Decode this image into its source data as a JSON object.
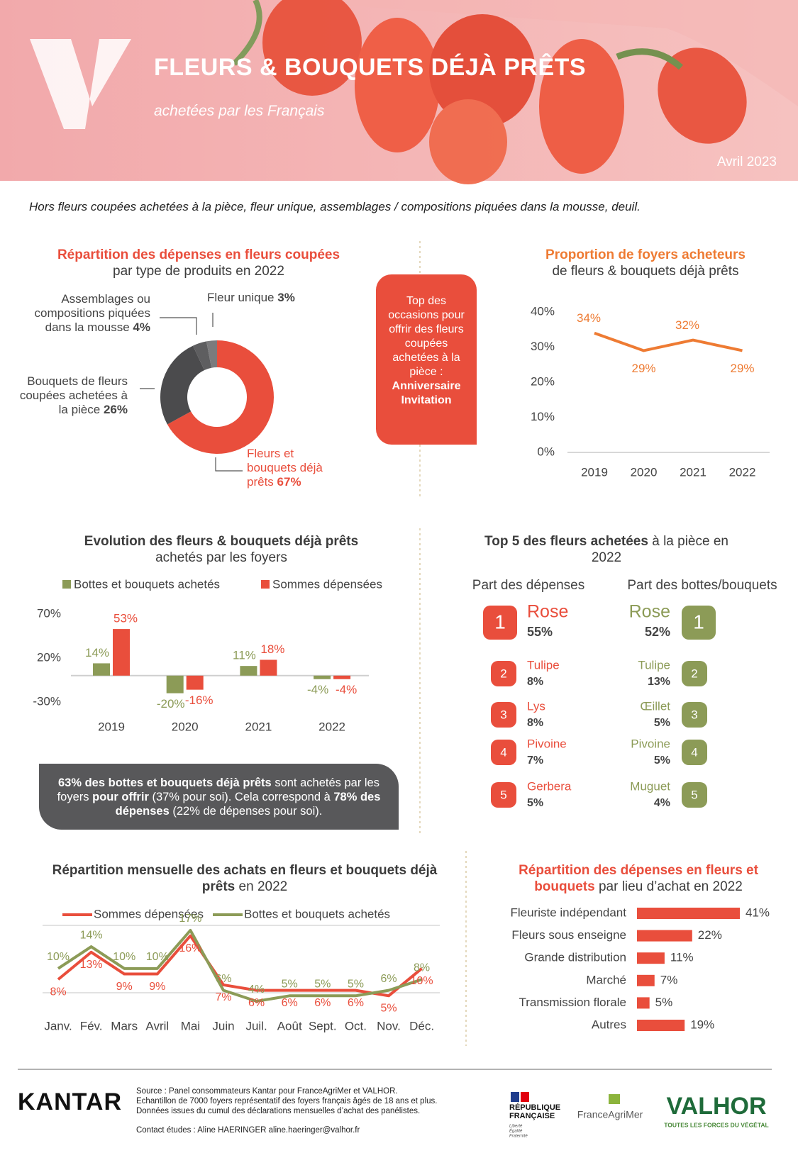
{
  "header": {
    "title": "FLEURS & BOUQUETS DÉJÀ PRÊTS",
    "subtitle": "achetées par les Français",
    "date": "Avril 2023"
  },
  "note": "Hors fleurs coupées achetées à la pièce, fleur unique, assemblages / compositions piquées dans la mousse, deuil.",
  "chart_data": [
    {
      "type": "donut",
      "title": "Répartition des dépenses en fleurs coupées",
      "subtitle": "par type de produits en 2022",
      "categories": [
        "Fleurs et bouquets déjà prêts",
        "Bouquets de fleurs coupées achetées à la pièce",
        "Assemblages ou compositions piquées dans la mousse",
        "Fleur unique"
      ],
      "values": [
        67,
        26,
        4,
        3
      ],
      "value_labels": [
        "67%",
        "26%",
        "4%",
        "3%"
      ],
      "colors": [
        "#e94e3c",
        "#4b4b4d",
        "#5e5e60",
        "#7b7b7d"
      ]
    },
    {
      "type": "line",
      "title": "Proportion de foyers acheteurs",
      "subtitle": "de fleurs & bouquets déjà prêts",
      "categories": [
        "2019",
        "2020",
        "2021",
        "2022"
      ],
      "values": [
        34,
        29,
        32,
        29
      ],
      "value_labels": [
        "34%",
        "29%",
        "32%",
        "29%"
      ],
      "color": "#ee7b33",
      "ylim": [
        0,
        40
      ],
      "yticks": [
        {
          "value": 0,
          "label": "0%"
        },
        {
          "value": 10,
          "label": "10%"
        },
        {
          "value": 20,
          "label": "20%"
        },
        {
          "value": 30,
          "label": "30%"
        },
        {
          "value": 40,
          "label": "40%"
        }
      ]
    },
    {
      "type": "bar",
      "title": "Evolution des fleurs & bouquets déjà prêts",
      "subtitle": "achetés par les foyers",
      "categories": [
        "2019",
        "2020",
        "2021",
        "2022"
      ],
      "series": [
        {
          "name": "Bottes et bouquets achetés",
          "color": "#8c9b57",
          "values": [
            14,
            -20,
            11,
            -4
          ],
          "value_labels": [
            "14%",
            "-20%",
            "11%",
            "-4%"
          ]
        },
        {
          "name": "Sommes dépensées",
          "color": "#e94e3c",
          "values": [
            53,
            -16,
            18,
            -4
          ],
          "value_labels": [
            "53%",
            "-16%",
            "18%",
            "-4%"
          ]
        }
      ],
      "ylim": [
        -30,
        70
      ],
      "yticks": [
        {
          "value": -30,
          "label": "-30%"
        },
        {
          "value": 20,
          "label": "20%"
        },
        {
          "value": 70,
          "label": "70%"
        }
      ]
    },
    {
      "type": "multiline",
      "title": "Répartition mensuelle des achats en fleurs et bouquets déjà prêts",
      "subtitle": "en 2022",
      "categories": [
        "Janv.",
        "Fév.",
        "Mars",
        "Avril",
        "Mai",
        "Juin",
        "Juil.",
        "Août",
        "Sept.",
        "Oct.",
        "Nov.",
        "Déc."
      ],
      "series": [
        {
          "name": "Sommes dépensées",
          "color": "#e94e3c",
          "values": [
            8,
            13,
            9,
            9,
            16,
            7,
            6,
            6,
            6,
            6,
            5,
            10
          ],
          "value_labels": [
            "8%",
            "13%",
            "9%",
            "9%",
            "16%",
            "7%",
            "6%",
            "6%",
            "6%",
            "6%",
            "5%",
            "10%"
          ]
        },
        {
          "name": "Bottes et bouquets achetés",
          "color": "#8c9b57",
          "values": [
            10,
            14,
            10,
            10,
            17,
            6,
            4,
            5,
            5,
            5,
            6,
            8
          ],
          "value_labels": [
            "10%",
            "14%",
            "10%",
            "10%",
            "17%",
            "6%",
            "4%",
            "5%",
            "5%",
            "5%",
            "6%",
            "8%"
          ]
        }
      ]
    },
    {
      "type": "hbar",
      "title": "Répartition des dépenses en fleurs et bouquets",
      "subtitle": "par lieu d’achat en 2022",
      "categories": [
        "Fleuriste indépendant",
        "Fleurs sous enseigne",
        "Grande distribution",
        "Marché",
        "Transmission florale",
        "Autres"
      ],
      "values": [
        41,
        22,
        11,
        7,
        5,
        19
      ],
      "value_labels": [
        "41%",
        "22%",
        "11%",
        "7%",
        "5%",
        "19%"
      ],
      "color": "#e94e3c"
    }
  ],
  "occasions": {
    "text": "Top des occasions pour offrir des fleurs coupées achetées à la pièce :",
    "items": [
      "Anniversaire",
      "Invitation"
    ]
  },
  "callout": [
    {
      "text": "63% des bottes et bouquets déjà prêts",
      "bold": true
    },
    {
      "text": " sont achetés par les foyers ",
      "bold": false
    },
    {
      "text": "pour offrir",
      "bold": true
    },
    {
      "text": " (37% pour soi). Cela correspond à ",
      "bold": false
    },
    {
      "text": "78% des dépenses",
      "bold": true
    },
    {
      "text": " (22% de dépenses pour soi).",
      "bold": false
    }
  ],
  "top5": {
    "title": "Top 5 des fleurs achetées",
    "subtitle": "à la pièce en 2022",
    "columns": [
      {
        "heading": "Part des dépenses",
        "color": "#e94e3c",
        "items": [
          {
            "rank": 1,
            "name": "Rose",
            "share": "55%"
          },
          {
            "rank": 2,
            "name": "Tulipe",
            "share": "8%"
          },
          {
            "rank": 3,
            "name": "Lys",
            "share": "8%"
          },
          {
            "rank": 4,
            "name": "Pivoine",
            "share": "7%"
          },
          {
            "rank": 5,
            "name": "Gerbera",
            "share": "5%"
          }
        ]
      },
      {
        "heading": "Part des bottes/bouquets",
        "color": "#8c9b57",
        "items": [
          {
            "rank": 1,
            "name": "Rose",
            "share": "52%"
          },
          {
            "rank": 2,
            "name": "Tulipe",
            "share": "13%"
          },
          {
            "rank": 3,
            "name": "Œillet",
            "share": "5%"
          },
          {
            "rank": 4,
            "name": "Pivoine",
            "share": "5%"
          },
          {
            "rank": 5,
            "name": "Muguet",
            "share": "4%"
          }
        ]
      }
    ]
  },
  "footer": {
    "brand": "KANTAR",
    "source": [
      "Source : Panel consommateurs Kantar pour FranceAgriMer et VALHOR.",
      "Echantillon de 7000 foyers représentatif des foyers français âgés de 18 ans et plus.",
      "Données issues du cumul des déclarations mensuelles d’achat des panélistes."
    ],
    "contact": "Contact études : Aline HAERINGER aline.haeringer@valhor.fr",
    "republique": [
      "RÉPUBLIQUE",
      "FRANÇAISE"
    ],
    "devise": [
      "Liberté",
      "Égalité",
      "Fraternité"
    ],
    "franceagrimer": "FranceAgriMer",
    "valhor": "VALHOR",
    "valhor_tagline": "TOUTES LES FORCES DU VÉGÉTAL"
  }
}
